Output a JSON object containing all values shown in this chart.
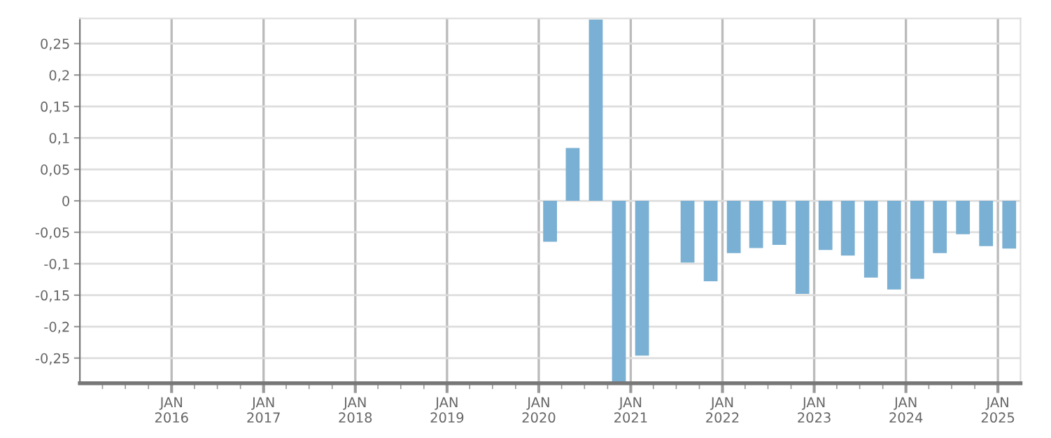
{
  "chart_data": {
    "type": "bar",
    "x": [
      "2020-02-15",
      "2020-05-15",
      "2020-08-15",
      "2020-11-15",
      "2021-02-15",
      "2021-05-15",
      "2021-08-15",
      "2021-11-15",
      "2022-02-15",
      "2022-05-15",
      "2022-08-15",
      "2022-11-15",
      "2023-02-15",
      "2023-05-15",
      "2023-08-15",
      "2023-11-15",
      "2024-02-15",
      "2024-05-15",
      "2024-08-15",
      "2024-11-15",
      "2025-02-15"
    ],
    "values": [
      -0.065,
      0.084,
      0.288,
      -0.29,
      -0.246,
      null,
      -0.098,
      -0.128,
      -0.083,
      -0.075,
      -0.07,
      -0.148,
      -0.078,
      -0.087,
      -0.122,
      -0.141,
      -0.124,
      -0.083,
      -0.053,
      -0.072,
      -0.076
    ],
    "color": "#7ab0d3",
    "xlim": [
      "2015-01-01",
      "2025-04-01"
    ],
    "xticks": [
      {
        "value": "2015-04-01",
        "label": null
      },
      {
        "value": "2015-07-01",
        "label": null
      },
      {
        "value": "2015-10-01",
        "label": null
      },
      {
        "value": "2016-01-01",
        "label": "JAN\n2016"
      },
      {
        "value": "2016-04-01",
        "label": null
      },
      {
        "value": "2016-07-01",
        "label": null
      },
      {
        "value": "2016-10-01",
        "label": null
      },
      {
        "value": "2017-01-01",
        "label": "JAN\n2017"
      },
      {
        "value": "2017-04-01",
        "label": null
      },
      {
        "value": "2017-07-01",
        "label": null
      },
      {
        "value": "2017-10-01",
        "label": null
      },
      {
        "value": "2018-01-01",
        "label": "JAN\n2018"
      },
      {
        "value": "2018-04-01",
        "label": null
      },
      {
        "value": "2018-07-01",
        "label": null
      },
      {
        "value": "2018-10-01",
        "label": null
      },
      {
        "value": "2019-01-01",
        "label": "JAN\n2019"
      },
      {
        "value": "2019-04-01",
        "label": null
      },
      {
        "value": "2019-07-01",
        "label": null
      },
      {
        "value": "2019-10-01",
        "label": null
      },
      {
        "value": "2020-01-01",
        "label": "JAN\n2020"
      },
      {
        "value": "2020-04-01",
        "label": null
      },
      {
        "value": "2020-07-01",
        "label": null
      },
      {
        "value": "2020-10-01",
        "label": null
      },
      {
        "value": "2021-01-01",
        "label": "JAN\n2021"
      },
      {
        "value": "2021-04-01",
        "label": null
      },
      {
        "value": "2021-07-01",
        "label": null
      },
      {
        "value": "2021-10-01",
        "label": null
      },
      {
        "value": "2022-01-01",
        "label": "JAN\n2022"
      },
      {
        "value": "2022-04-01",
        "label": null
      },
      {
        "value": "2022-07-01",
        "label": null
      },
      {
        "value": "2022-10-01",
        "label": null
      },
      {
        "value": "2023-01-01",
        "label": "JAN\n2023"
      },
      {
        "value": "2023-04-01",
        "label": null
      },
      {
        "value": "2023-07-01",
        "label": null
      },
      {
        "value": "2023-10-01",
        "label": null
      },
      {
        "value": "2024-01-01",
        "label": "JAN\n2024"
      },
      {
        "value": "2024-04-01",
        "label": null
      },
      {
        "value": "2024-07-01",
        "label": null
      },
      {
        "value": "2024-10-01",
        "label": null
      },
      {
        "value": "2025-01-01",
        "label": "JAN\n2025"
      }
    ],
    "ylim": [
      -0.29,
      0.29
    ],
    "yticks": [
      {
        "value": -0.25,
        "label": "-0,25"
      },
      {
        "value": -0.2,
        "label": "-0,2"
      },
      {
        "value": -0.15,
        "label": "-0,15"
      },
      {
        "value": -0.1,
        "label": "-0,1"
      },
      {
        "value": -0.05,
        "label": "-0,05"
      },
      {
        "value": 0,
        "label": "0"
      },
      {
        "value": 0.05,
        "label": "0,05"
      },
      {
        "value": 0.1,
        "label": "0,1"
      },
      {
        "value": 0.15,
        "label": "0,15"
      },
      {
        "value": 0.2,
        "label": "0,2"
      },
      {
        "value": 0.25,
        "label": "0,25"
      }
    ],
    "grid": true
  }
}
